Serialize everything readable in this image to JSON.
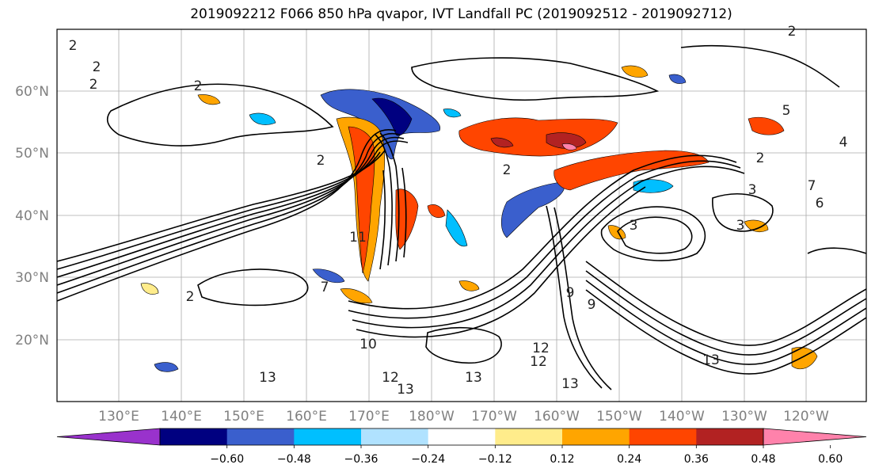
{
  "title": "2019092212 F066 850 hPa qvapor, IVT Landfall PC (2019092512 - 2019092712)",
  "map": {
    "lat_ticks": [
      "60°N",
      "50°N",
      "40°N",
      "30°N",
      "20°N"
    ],
    "lon_ticks": [
      "130°E",
      "140°E",
      "150°E",
      "160°E",
      "170°E",
      "180°W",
      "170°W",
      "160°W",
      "150°W",
      "140°W",
      "130°W",
      "120°W"
    ],
    "contour_labels": [
      "2",
      "2",
      "2",
      "2",
      "2",
      "2",
      "2",
      "2",
      "2",
      "3",
      "3",
      "3",
      "4",
      "5",
      "6",
      "7",
      "7",
      "9",
      "9",
      "10",
      "11",
      "12",
      "12",
      "12",
      "13",
      "13",
      "13",
      "13",
      "13"
    ],
    "tick_label_color": "#808080"
  },
  "colorbar": {
    "ticks": [
      "−0.60",
      "−0.48",
      "−0.36",
      "−0.24",
      "−0.12",
      "0.12",
      "0.24",
      "0.36",
      "0.48",
      "0.60"
    ],
    "colors": [
      "#9932cc",
      "#000080",
      "#3a5fcd",
      "#00bfff",
      "#b0e2ff",
      "#ffffff",
      "#ffec8b",
      "#ffa500",
      "#ff4500",
      "#b22222",
      "#ff82ab"
    ]
  }
}
